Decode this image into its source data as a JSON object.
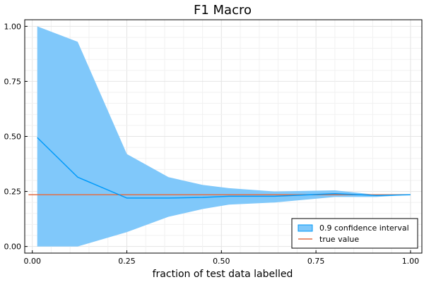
{
  "chart_data": {
    "type": "line",
    "title": "F1 Macro",
    "xlabel": "fraction of test data labelled",
    "ylabel": "",
    "xlim": [
      -0.02,
      1.03
    ],
    "ylim": [
      -0.03,
      1.03
    ],
    "grid": true,
    "x_ticks": [
      0.0,
      0.25,
      0.5,
      0.75,
      1.0
    ],
    "x_tick_labels": [
      "0.00",
      "0.25",
      "0.50",
      "0.75",
      "1.00"
    ],
    "y_ticks": [
      0.0,
      0.25,
      0.5,
      0.75,
      1.0
    ],
    "y_tick_labels": [
      "0.00",
      "0.25",
      "0.50",
      "0.75",
      "1.00"
    ],
    "legend_position": "bottom-right",
    "colors": {
      "band": "#80C8FA",
      "band_edge": "#009AFA",
      "estimate": "#009AFA",
      "true_value": "#E26F46"
    },
    "series": [
      {
        "name": "0.9 confidence interval",
        "kind": "band",
        "x": [
          0.013,
          0.12,
          0.25,
          0.36,
          0.45,
          0.52,
          0.64,
          0.8,
          0.91,
          1.0
        ],
        "lower": [
          0.0,
          0.0,
          0.065,
          0.135,
          0.17,
          0.19,
          0.2,
          0.225,
          0.225,
          0.235
        ],
        "upper": [
          1.0,
          0.93,
          0.42,
          0.315,
          0.28,
          0.265,
          0.25,
          0.255,
          0.235,
          0.235
        ]
      },
      {
        "kind": "line",
        "x": [
          0.013,
          0.12,
          0.25,
          0.36,
          0.45,
          0.52,
          0.64,
          0.8,
          0.91,
          1.0
        ],
        "y": [
          0.495,
          0.315,
          0.22,
          0.22,
          0.223,
          0.228,
          0.228,
          0.24,
          0.232,
          0.235
        ]
      },
      {
        "name": "true value",
        "kind": "hline",
        "x": [
          -0.01,
          1.0
        ],
        "y": [
          0.235,
          0.235
        ]
      }
    ]
  }
}
